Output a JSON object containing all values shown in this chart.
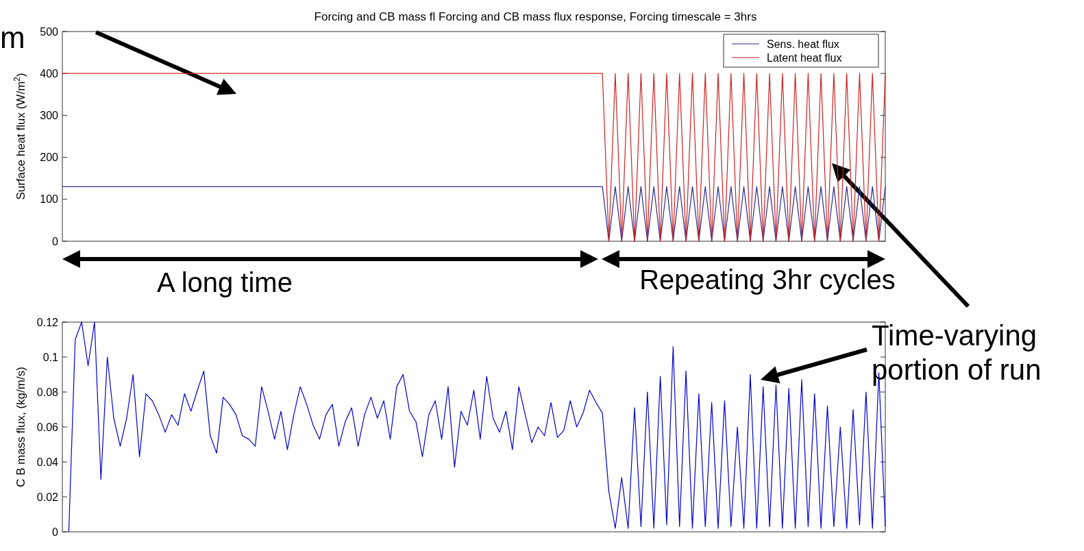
{
  "chart_data": [
    {
      "type": "line",
      "title": "Forcing and CB mass fl Forcing and CB mass flux response, Forcing timescale = 3hrs",
      "ylabel": "Surface heat flux (W/m$^{2}$)",
      "ylim": [
        0,
        500
      ],
      "yticks": [
        0,
        100,
        200,
        300,
        400,
        500
      ],
      "tick_labels": "y",
      "legend": "top right",
      "annotations": [
        "m",
        "A long time",
        "Repeating 3hr cycles"
      ],
      "categories": [
        null,
        null,
        null,
        null,
        null,
        null,
        null,
        null,
        null,
        null,
        null,
        null,
        null,
        null,
        null,
        null,
        null,
        null,
        null,
        null,
        null,
        null,
        null,
        null,
        null,
        null,
        null,
        null,
        null,
        null,
        null,
        null,
        null,
        null,
        null,
        null,
        null,
        null,
        null,
        null,
        null,
        null,
        null,
        null,
        null,
        null,
        null,
        null,
        null,
        null,
        null,
        null,
        null,
        null,
        null,
        null,
        null,
        null,
        null,
        null,
        null,
        null,
        null,
        null,
        null,
        null,
        null,
        null,
        null,
        null,
        null,
        null,
        null,
        null,
        null,
        null,
        null,
        null,
        null,
        null,
        null,
        null,
        null,
        null,
        null,
        null,
        null,
        null,
        null,
        null,
        null,
        null,
        null,
        null,
        null,
        null,
        null,
        null,
        null,
        null,
        null,
        null,
        null,
        null,
        null,
        null,
        null,
        null,
        null,
        null,
        null,
        null,
        null,
        null,
        null,
        null,
        null,
        null,
        null,
        null,
        null,
        null,
        null,
        null,
        null,
        null,
        null,
        null,
        null
      ],
      "series": [
        {
          "name": "Sens. heat flux",
          "color": "#2a2a8c",
          "values": [
            130,
            130,
            130,
            130,
            130,
            130,
            130,
            130,
            130,
            130,
            130,
            130,
            130,
            130,
            130,
            130,
            130,
            130,
            130,
            130,
            130,
            130,
            130,
            130,
            130,
            130,
            130,
            130,
            130,
            130,
            130,
            130,
            130,
            130,
            130,
            130,
            130,
            130,
            130,
            130,
            130,
            130,
            130,
            130,
            130,
            130,
            130,
            130,
            130,
            130,
            130,
            130,
            130,
            130,
            130,
            130,
            130,
            130,
            130,
            130,
            130,
            130,
            130,
            130,
            130,
            130,
            130,
            130,
            130,
            130,
            130,
            130,
            130,
            130,
            130,
            130,
            130,
            130,
            130,
            130,
            130,
            130,
            130,
            130,
            130,
            0,
            130,
            0,
            130,
            0,
            130,
            0,
            130,
            0,
            130,
            0,
            130,
            0,
            130,
            0,
            130,
            0,
            130,
            0,
            130,
            0,
            130,
            0,
            130,
            0,
            130,
            0,
            130,
            0,
            130,
            0,
            130,
            0,
            130,
            0,
            130,
            0,
            130,
            0,
            130,
            0,
            130,
            0,
            130
          ]
        },
        {
          "name": "Latent heat flux",
          "color": "#cc2222",
          "values": [
            400,
            400,
            400,
            400,
            400,
            400,
            400,
            400,
            400,
            400,
            400,
            400,
            400,
            400,
            400,
            400,
            400,
            400,
            400,
            400,
            400,
            400,
            400,
            400,
            400,
            400,
            400,
            400,
            400,
            400,
            400,
            400,
            400,
            400,
            400,
            400,
            400,
            400,
            400,
            400,
            400,
            400,
            400,
            400,
            400,
            400,
            400,
            400,
            400,
            400,
            400,
            400,
            400,
            400,
            400,
            400,
            400,
            400,
            400,
            400,
            400,
            400,
            400,
            400,
            400,
            400,
            400,
            400,
            400,
            400,
            400,
            400,
            400,
            400,
            400,
            400,
            400,
            400,
            400,
            400,
            400,
            400,
            400,
            400,
            400,
            0,
            400,
            0,
            400,
            0,
            400,
            0,
            400,
            0,
            400,
            0,
            400,
            0,
            400,
            0,
            400,
            0,
            400,
            0,
            400,
            0,
            400,
            0,
            400,
            0,
            400,
            0,
            400,
            0,
            400,
            0,
            400,
            0,
            400,
            0,
            400,
            0,
            400,
            0,
            400,
            0,
            400,
            0,
            400
          ]
        }
      ]
    },
    {
      "type": "line",
      "ylabel": "C B  mass flux, (kg/m/s)",
      "ylim": [
        0,
        0.12
      ],
      "yticks": [
        0,
        0.02,
        0.04,
        0.06,
        0.08,
        0.1,
        0.12
      ],
      "tick_labels": "y",
      "annotations": [
        "Time-varying portion of run"
      ],
      "categories": [
        null,
        null,
        null,
        null,
        null,
        null,
        null,
        null,
        null,
        null,
        null,
        null,
        null,
        null,
        null,
        null,
        null,
        null,
        null,
        null,
        null,
        null,
        null,
        null,
        null,
        null,
        null,
        null,
        null,
        null,
        null,
        null,
        null,
        null,
        null,
        null,
        null,
        null,
        null,
        null,
        null,
        null,
        null,
        null,
        null,
        null,
        null,
        null,
        null,
        null,
        null,
        null,
        null,
        null,
        null,
        null,
        null,
        null,
        null,
        null,
        null,
        null,
        null,
        null,
        null,
        null,
        null,
        null,
        null,
        null,
        null,
        null,
        null,
        null,
        null,
        null,
        null,
        null,
        null,
        null,
        null,
        null,
        null,
        null,
        null,
        null,
        null,
        null,
        null,
        null,
        null,
        null,
        null,
        null,
        null,
        null,
        null,
        null,
        null,
        null,
        null,
        null,
        null,
        null,
        null,
        null,
        null,
        null,
        null,
        null,
        null,
        null,
        null,
        null,
        null,
        null,
        null,
        null,
        null,
        null,
        null,
        null,
        null,
        null,
        null,
        null,
        null,
        null,
        null
      ],
      "series": [
        {
          "color": "#0000cc",
          "values": [
            null,
            0,
            0.11,
            0.12,
            0.095,
            0.12,
            0.03,
            0.1,
            0.065,
            0.049,
            0.065,
            0.09,
            0.043,
            0.079,
            0.075,
            0.067,
            0.057,
            0.067,
            0.061,
            0.079,
            0.069,
            0.081,
            0.092,
            0.055,
            0.045,
            0.077,
            0.073,
            0.067,
            0.055,
            0.053,
            0.049,
            0.083,
            0.069,
            0.053,
            0.069,
            0.047,
            0.067,
            0.083,
            0.073,
            0.061,
            0.053,
            0.067,
            0.073,
            0.049,
            0.063,
            0.071,
            0.049,
            0.067,
            0.077,
            0.065,
            0.075,
            0.053,
            0.083,
            0.09,
            0.069,
            0.063,
            0.043,
            0.067,
            0.075,
            0.053,
            0.083,
            0.037,
            0.069,
            0.061,
            0.081,
            0.053,
            0.089,
            0.065,
            0.057,
            0.069,
            0.047,
            0.083,
            0.067,
            0.051,
            0.06,
            0.055,
            0.074,
            0.054,
            0.058,
            0.075,
            0.06,
            0.068,
            0.081,
            0.074,
            0.068,
            0.023,
            0.002,
            0.031,
            0.002,
            0.071,
            0.003,
            0.08,
            0.002,
            0.089,
            0.004,
            0.106,
            0.003,
            0.092,
            0.002,
            0.079,
            0.003,
            0.074,
            0.002,
            0.075,
            0.003,
            0.06,
            0.002,
            0.09,
            0.002,
            0.083,
            0.003,
            0.084,
            0.002,
            0.082,
            0.002,
            0.087,
            0.003,
            0.079,
            0.002,
            0.072,
            0.003,
            0.06,
            0.002,
            0.07,
            0.004,
            0.08,
            0.002,
            0.091,
            0.003
          ]
        }
      ]
    }
  ]
}
